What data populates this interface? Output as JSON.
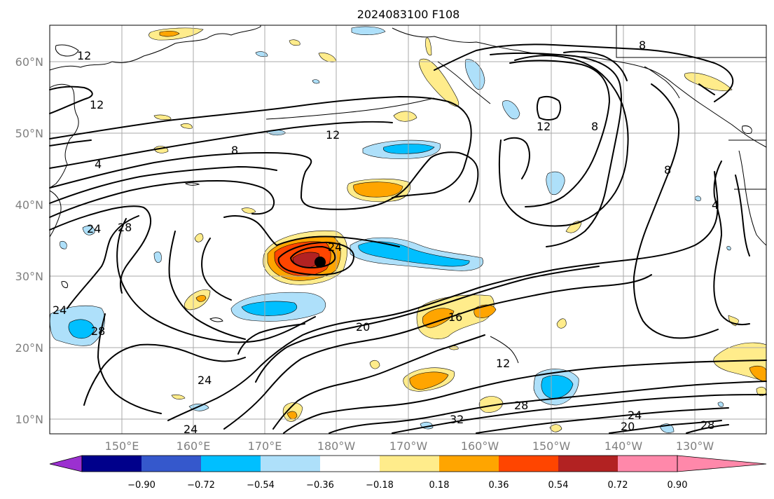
{
  "title": "2024083100 F108",
  "latitude_labels": [
    "60°N",
    "50°N",
    "40°N",
    "30°N",
    "20°N",
    "10°N"
  ],
  "longitude_labels": [
    "150°E",
    "160°E",
    "170°E",
    "180°W",
    "170°W",
    "160°W",
    "150°W",
    "140°W",
    "130°W"
  ],
  "colorbar": {
    "ticks": [
      "−0.90",
      "−0.72",
      "−0.54",
      "−0.36",
      "−0.18",
      "0.18",
      "0.36",
      "0.54",
      "0.72",
      "0.90"
    ],
    "colors": [
      "#9b30d0",
      "#00008b",
      "#3558cc",
      "#00bfff",
      "#aee0fa",
      "#ffffff",
      "#ffec8b",
      "#ffa500",
      "#ff4500",
      "#b22222",
      "#ff88aa"
    ]
  },
  "contour_labels": [
    "12",
    "12",
    "8",
    "12",
    "4",
    "24",
    "28",
    "24",
    "24",
    "28",
    "20",
    "16",
    "12",
    "24",
    "24",
    "28",
    "32",
    "20",
    "24",
    "28",
    "12",
    "8",
    "8",
    "8",
    "4"
  ],
  "storm_marker": "black-dot"
}
